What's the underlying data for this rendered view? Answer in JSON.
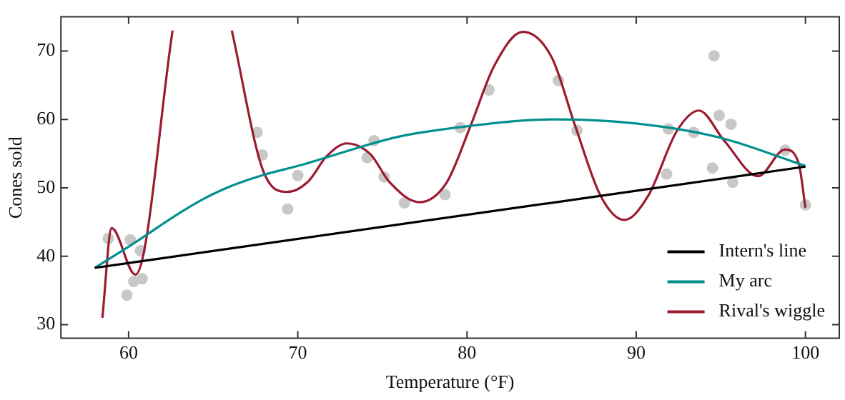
{
  "chart_data": {
    "type": "line",
    "xlabel": "Temperature (°F)",
    "ylabel": "Cones sold",
    "xlim": [
      56,
      102
    ],
    "xticks": [
      60,
      70,
      80,
      90,
      100
    ],
    "ylim": [
      28,
      75
    ],
    "yticks": [
      30,
      40,
      50,
      60,
      70
    ],
    "grid": false,
    "legend": "bottom right",
    "series": [
      {
        "type": "scatter",
        "marker": "circle",
        "color": "#c8c8c8",
        "x": [
          58.8,
          60.1,
          60.7,
          60.3,
          60.8,
          59.9,
          67.6,
          67.9,
          69.4,
          70.0,
          74.1,
          74.5,
          75.1,
          76.3,
          78.7,
          79.6,
          81.3,
          85.4,
          86.5,
          91.8,
          91.9,
          93.4,
          94.5,
          94.6,
          94.9,
          95.6,
          95.7,
          98.8,
          100.0
        ],
        "values": [
          42.6,
          42.4,
          40.8,
          36.3,
          36.7,
          34.3,
          58.1,
          54.8,
          46.9,
          51.8,
          54.4,
          56.9,
          51.6,
          47.8,
          49.0,
          58.8,
          64.3,
          65.7,
          58.4,
          52.0,
          58.6,
          58.1,
          52.9,
          69.3,
          60.6,
          59.3,
          50.8,
          55.5,
          47.5
        ]
      },
      {
        "name": "Intern's line",
        "marker": "none",
        "color": "#000000",
        "x": [
          58,
          100
        ],
        "values": [
          38.3,
          53.1
        ]
      },
      {
        "name": "My arc",
        "marker": "none",
        "color": "#00908f",
        "x": [
          58,
          60,
          64,
          66,
          68,
          70,
          76,
          80,
          85,
          90,
          95,
          100
        ],
        "values": [
          38.3,
          41.4,
          47.8,
          50.2,
          51.9,
          53.2,
          57.5,
          59.0,
          60.0,
          59.4,
          57.3,
          53.2
        ]
      },
      {
        "name": "Rival's wiggle",
        "marker": "none",
        "color": "#9b1b30",
        "x": [
          58.45,
          59.0,
          60.4,
          62.6,
          null,
          66.1,
          68.0,
          69.4,
          70.6,
          71.7,
          72.9,
          74.3,
          75.4,
          77.2,
          78.8,
          80.2,
          81.6,
          83.3,
          85.0,
          86.4,
          87.9,
          89.3,
          90.7,
          92.4,
          93.7,
          95.2,
          97.2,
          98.8,
          99.6,
          100.0
        ],
        "values": [
          31,
          44.1,
          37.3,
          73,
          null,
          73,
          52.2,
          49.4,
          50.9,
          54.6,
          56.5,
          54.9,
          50.9,
          47.9,
          50.8,
          59.0,
          67.8,
          72.8,
          69.1,
          59.0,
          48.8,
          45.3,
          48.8,
          58.3,
          61.3,
          56.9,
          51.7,
          55.6,
          53.6,
          47.1
        ]
      }
    ]
  }
}
